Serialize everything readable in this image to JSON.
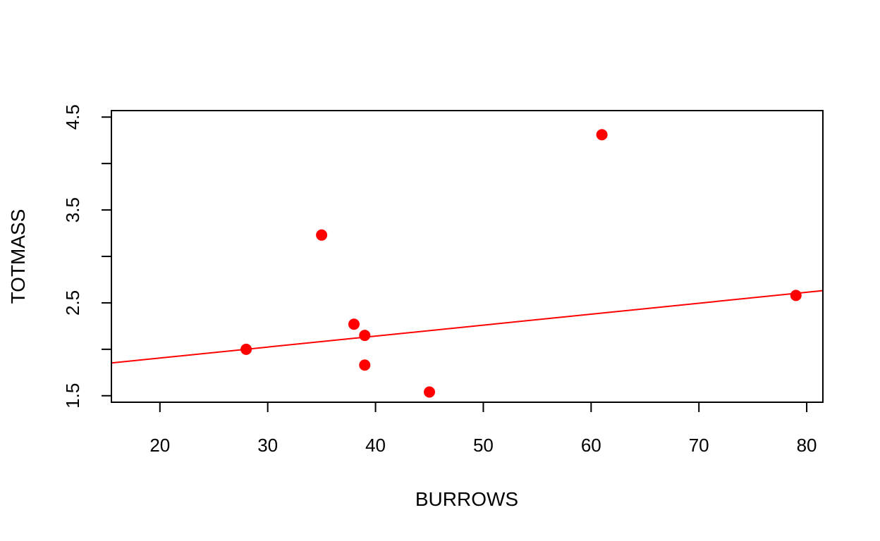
{
  "chart_data": {
    "type": "scatter",
    "title": "",
    "xlabel": "BURROWS",
    "ylabel": "TOTMASS",
    "xlim": [
      15.5,
      81.5
    ],
    "ylim": [
      1.43,
      4.57
    ],
    "xticks": [
      20,
      30,
      40,
      50,
      60,
      70,
      80
    ],
    "xtick_labels": [
      "20",
      "30",
      "40",
      "50",
      "60",
      "70",
      "80"
    ],
    "yticks": [
      1.5,
      2.0,
      2.5,
      3.0,
      3.5,
      4.0,
      4.5
    ],
    "ytick_labels": [
      "1.5",
      "",
      "2.5",
      "",
      "3.5",
      "",
      "4.5"
    ],
    "grid": false,
    "point_color": "#ff0000",
    "points": [
      {
        "x": 28,
        "y": 2.0
      },
      {
        "x": 35,
        "y": 3.23
      },
      {
        "x": 38,
        "y": 2.27
      },
      {
        "x": 39,
        "y": 2.15
      },
      {
        "x": 39,
        "y": 1.83
      },
      {
        "x": 45,
        "y": 1.54
      },
      {
        "x": 61,
        "y": 4.31
      },
      {
        "x": 79,
        "y": 2.58
      }
    ],
    "fit_line": {
      "intercept": 1.67,
      "slope": 0.0118,
      "color": "#ff0000"
    }
  }
}
